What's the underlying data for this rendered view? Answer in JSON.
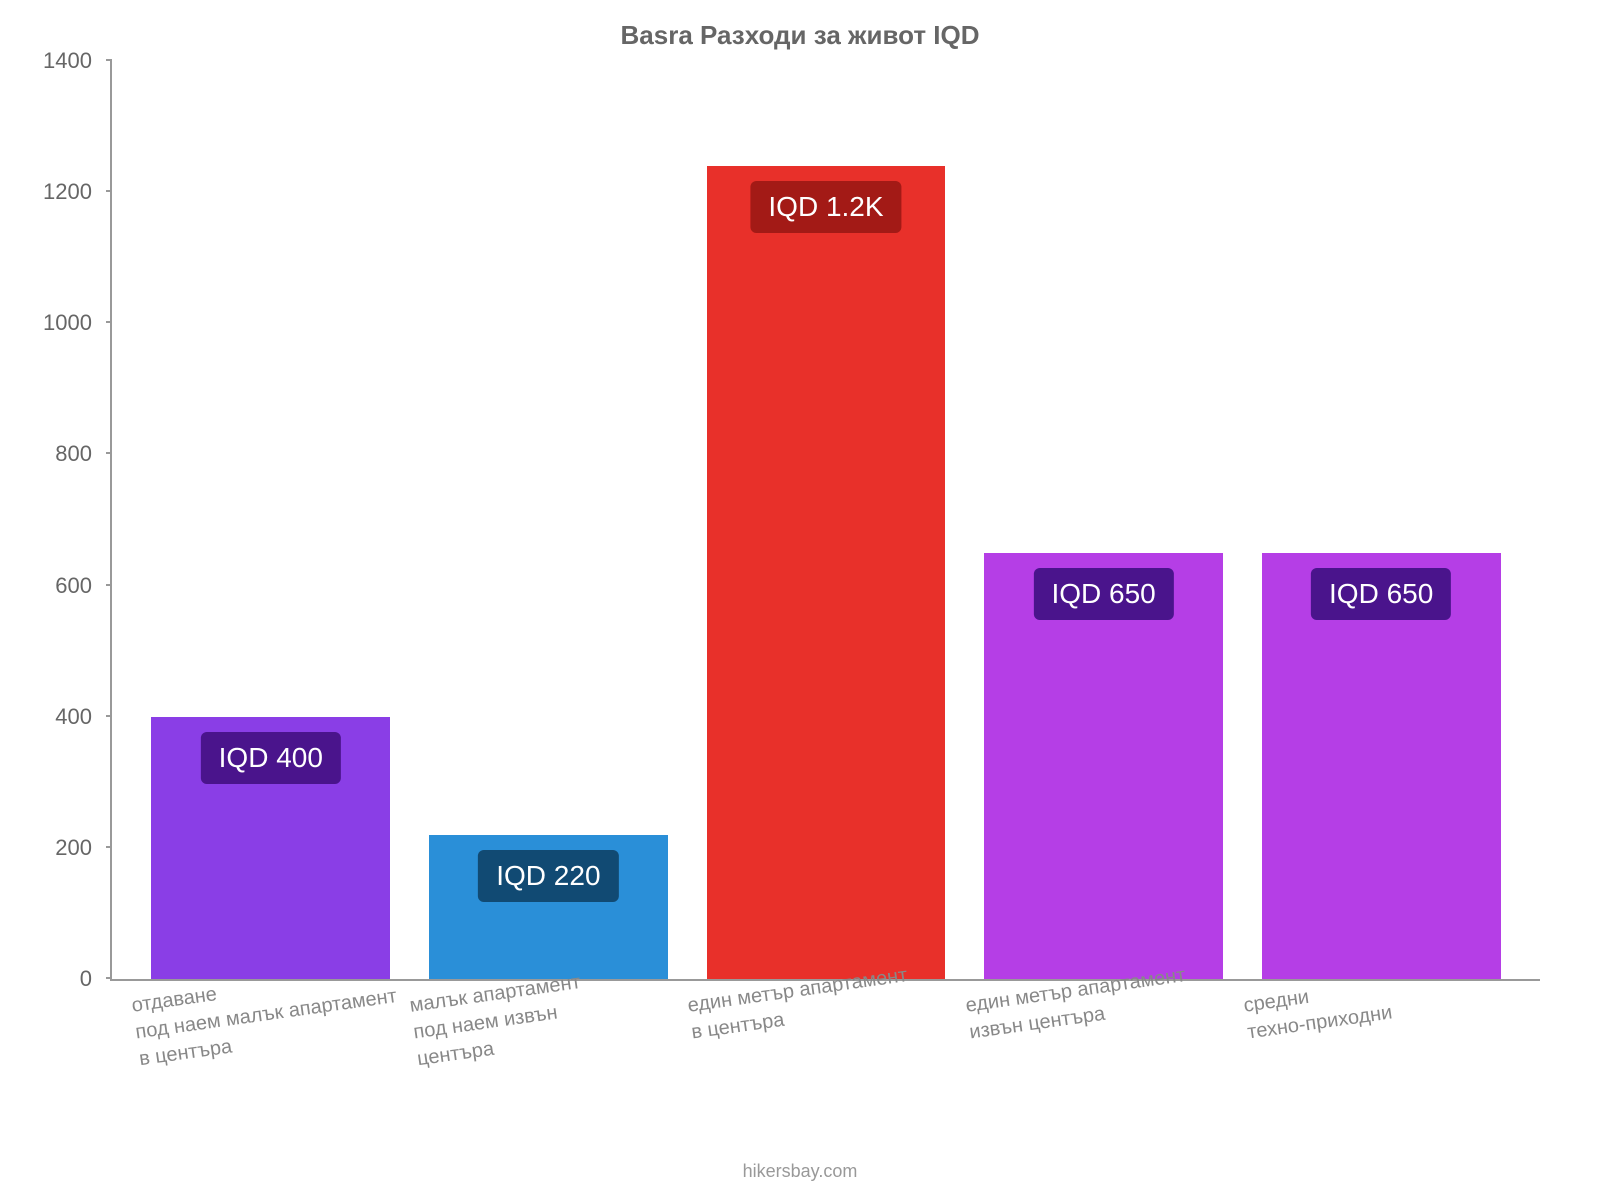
{
  "chart": {
    "type": "bar",
    "title": "Basra Разходи за живот IQD",
    "title_fontsize": 26,
    "title_color": "#666666",
    "background_color": "#ffffff",
    "axis_color": "#999999",
    "ylim": [
      0,
      1400
    ],
    "ytick_step": 200,
    "yticks": [
      0,
      200,
      400,
      600,
      800,
      1000,
      1200,
      1400
    ],
    "ytick_fontsize": 22,
    "ytick_color": "#666666",
    "xlabel_fontsize": 20,
    "xlabel_color": "#888888",
    "bar_label_fontsize": 28,
    "bar_width_ratio": 0.86,
    "footer": "hikersbay.com",
    "footer_fontsize": 18,
    "footer_color": "#999999",
    "categories": [
      "отдаване\nпод наем малък апартамент\nв центъра",
      "малък апартамент\nпод наем извън\nцентъра",
      "един метър апартамент\nв центъра",
      "един метър апартамент\nизвън центъра",
      "средни\nтехно-приходни"
    ],
    "bars": [
      {
        "value": 400,
        "display_label": "IQD 400",
        "fill_color": "#8a3ee6",
        "label_bg": "#4a148c",
        "label_text_color": "#ffffff"
      },
      {
        "value": 220,
        "display_label": "IQD 220",
        "fill_color": "#2a8fd8",
        "label_bg": "#114a73",
        "label_text_color": "#ffffff"
      },
      {
        "value": 1240,
        "display_label": "IQD 1.2K",
        "fill_color": "#e8302a",
        "label_bg": "#a31a16",
        "label_text_color": "#ffffff"
      },
      {
        "value": 650,
        "display_label": "IQD 650",
        "fill_color": "#b53ee6",
        "label_bg": "#4a148c",
        "label_text_color": "#ffffff"
      },
      {
        "value": 650,
        "display_label": "IQD 650",
        "fill_color": "#b53ee6",
        "label_bg": "#4a148c",
        "label_text_color": "#ffffff"
      }
    ]
  }
}
